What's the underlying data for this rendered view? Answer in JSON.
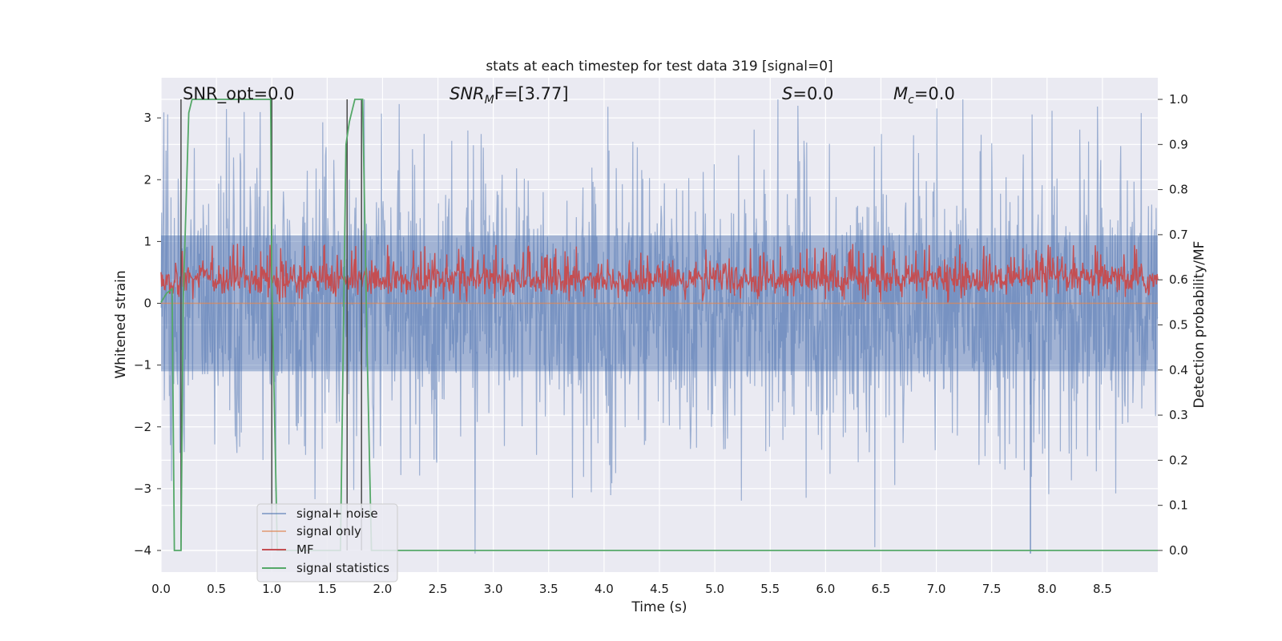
{
  "chart_data": {
    "type": "line",
    "title": "stats at each timestep for test data 319 [signal=0]",
    "xlabel": "Time (s)",
    "ylabel": "Whitened strain",
    "y2label": "Detection probability/MF",
    "xlim": [
      0.0,
      9.0
    ],
    "ylim": [
      -4.35,
      3.65
    ],
    "y2lim": [
      -0.048,
      1.048
    ],
    "xticks": [
      "0.0",
      "0.5",
      "1.0",
      "1.5",
      "2.0",
      "2.5",
      "3.0",
      "3.5",
      "4.0",
      "4.5",
      "5.0",
      "5.5",
      "6.0",
      "6.5",
      "7.0",
      "7.5",
      "8.0",
      "8.5"
    ],
    "yticks": [
      "3",
      "2",
      "1",
      "0",
      "−1",
      "−2",
      "−3",
      "−4"
    ],
    "y2ticks": [
      "1.0",
      "0.9",
      "0.8",
      "0.7",
      "0.6",
      "0.5",
      "0.4",
      "0.3",
      "0.2",
      "0.1",
      "0.0"
    ],
    "annotations": {
      "snr_opt": "SNR_opt=0.0",
      "snr_mf_base": "SNR",
      "snr_mf_sub": "M",
      "snr_mf_tail": "F=[3.77]",
      "s_base": "S",
      "s_tail": "=0.0",
      "mc_base": "M",
      "mc_sub": "c",
      "mc_tail": "=0.0"
    },
    "legend_position": "lower-left",
    "grid": true,
    "colors": {
      "signal_noise": "#4c72b0",
      "signal_only": "#dd8452",
      "mf": "#c44e52",
      "statistics": "#55a868",
      "vlines": "#4a4a4a",
      "background": "#eaeaf2"
    },
    "series": [
      {
        "name": "signal+ noise",
        "axis": "left",
        "description_kind": "dense noise",
        "envelope": {
          "center": 0.0,
          "upper_typical": 1.9,
          "lower_typical": -1.9,
          "extreme_high": 3.3,
          "extreme_low": -4.05
        }
      },
      {
        "name": "signal only",
        "axis": "left",
        "x": [
          0.0,
          9.0
        ],
        "y": [
          0.0,
          0.0
        ]
      },
      {
        "name": "MF",
        "axis": "right",
        "description_kind": "dense noise",
        "envelope": {
          "center": 0.6,
          "upper_typical": 0.66,
          "lower_typical": 0.555,
          "extreme_high": 0.68
        }
      },
      {
        "name": "signal statistics",
        "axis": "right",
        "x": [
          0.0,
          0.05,
          0.1,
          0.12,
          0.18,
          0.2,
          0.25,
          0.28,
          0.5,
          0.75,
          0.99,
          1.0,
          1.05,
          1.1,
          1.5,
          1.62,
          1.67,
          1.7,
          1.73,
          1.75,
          1.78,
          1.82,
          1.86,
          1.9,
          1.95,
          2.0,
          9.0
        ],
        "y": [
          0.55,
          0.57,
          0.58,
          0.0,
          0.0,
          0.55,
          0.97,
          1.0,
          1.0,
          1.0,
          1.0,
          0.6,
          0.0,
          0.0,
          0.0,
          0.0,
          0.9,
          0.95,
          0.98,
          1.0,
          1.0,
          1.0,
          0.45,
          0.0,
          0.0,
          0.0,
          0.0
        ]
      }
    ],
    "vlines": [
      {
        "x": 0.18,
        "y_top": 1.0,
        "y_bottom": 0.0
      },
      {
        "x": 1.0,
        "y_top": 1.0,
        "y_bottom": 0.0
      },
      {
        "x": 1.68,
        "y_top": 1.0,
        "y_bottom": 0.0
      },
      {
        "x": 1.81,
        "y_top": 1.0,
        "y_bottom": 0.0
      }
    ]
  }
}
